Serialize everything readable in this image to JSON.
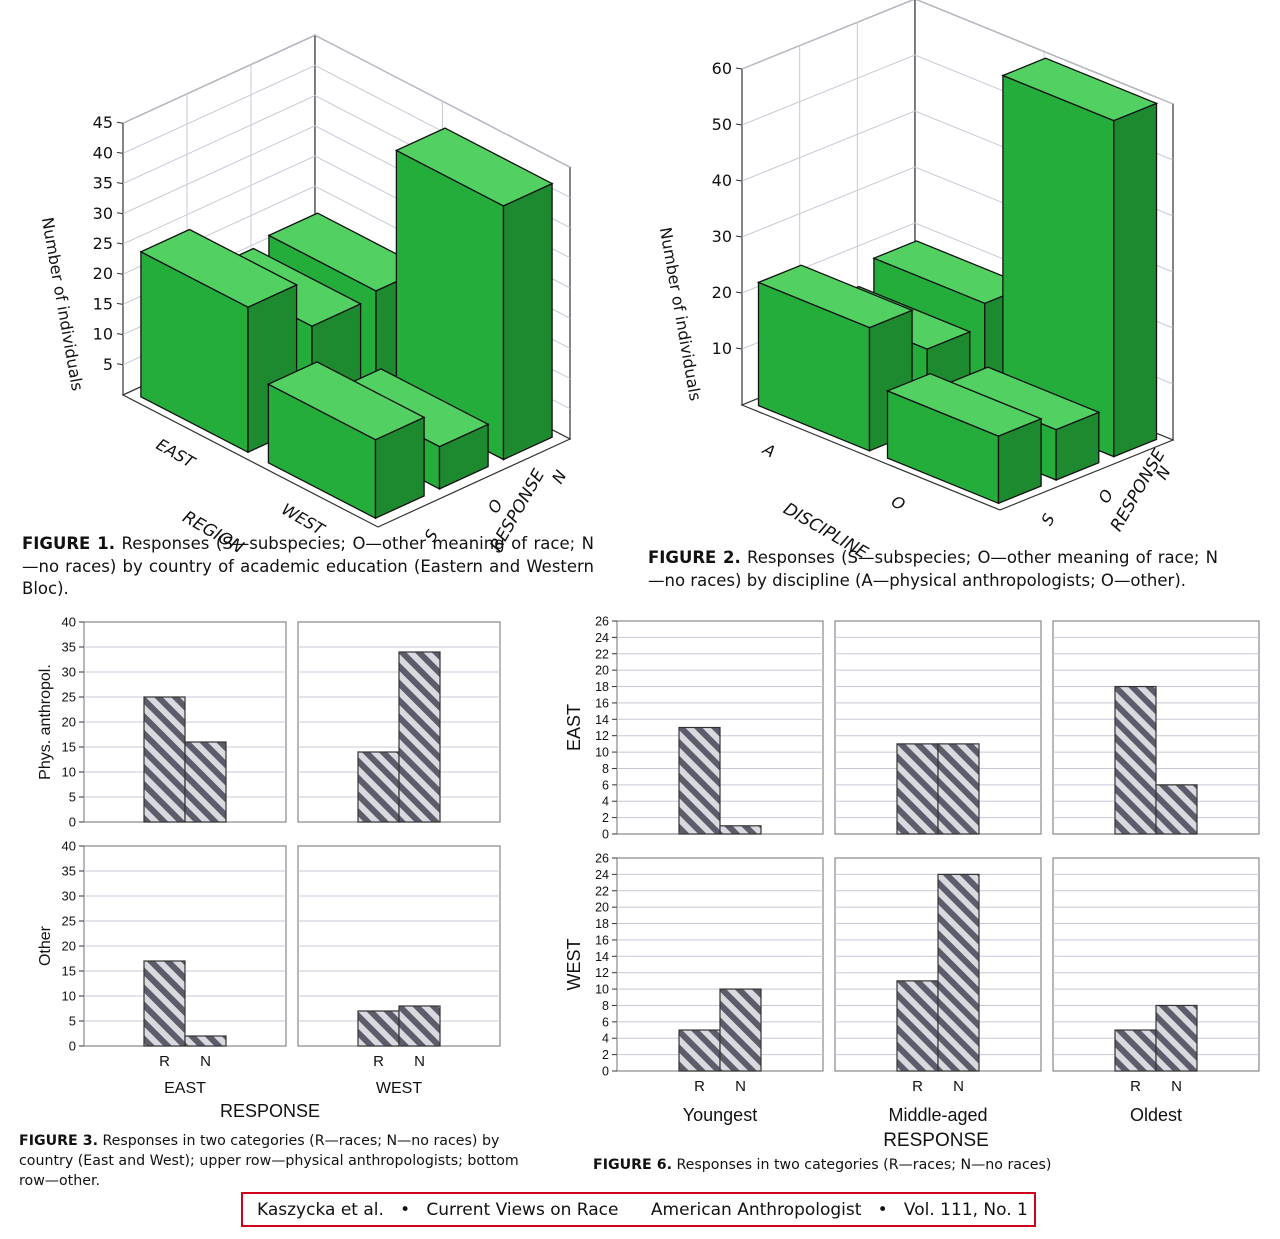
{
  "colors": {
    "bar3d_front": "#25ad3c",
    "bar3d_side": "#1e8a30",
    "bar3d_top": "#52d162",
    "hatch_dark": "#5c5c6a",
    "hatch_light": "#d9d9e0",
    "grid": "#c8c8d8",
    "footer_border": "#d0021b"
  },
  "captions": {
    "fig1_label": "FIGURE 1.",
    "fig1_text": " Responses (S—subspecies; O—other meaning of race; N—no races) by country of academic education (Eastern and Western Bloc).",
    "fig2_label": "FIGURE 2.",
    "fig2_text": " Responses (S—subspecies; O—other meaning of race; N—no races) by discipline (A—physical anthropologists; O—other).",
    "fig3_label": "FIGURE 3.",
    "fig3_text": " Responses in two categories (R—races; N—no races) by country (East and West); upper row—physical anthropologists; bottom row—other.",
    "fig6_label": "FIGURE 6.",
    "fig6_text": " Responses in two categories (R—races; N—no races)"
  },
  "footer": {
    "authors": "Kaszycka et al.",
    "title": "Current Views on Race",
    "journal": "American Anthropologist",
    "volume": "Vol. 111, No. 1"
  },
  "chart_data": [
    {
      "id": "fig1",
      "type": "bar3d",
      "ylabel": "Number of individuals",
      "ylim": [
        0,
        45
      ],
      "yticks": [
        5,
        10,
        15,
        20,
        25,
        30,
        35,
        40,
        45
      ],
      "xaxis_label": "REGION",
      "x_categories": [
        "EAST",
        "WEST"
      ],
      "zaxis_label": "RESPONSE",
      "z_categories": [
        "S",
        "O",
        "N"
      ],
      "values": [
        {
          "x": "EAST",
          "z": "S",
          "value": 24
        },
        {
          "x": "EAST",
          "z": "O",
          "value": 16
        },
        {
          "x": "EAST",
          "z": "N",
          "value": 17
        },
        {
          "x": "WEST",
          "z": "S",
          "value": 13
        },
        {
          "x": "WEST",
          "z": "O",
          "value": 7
        },
        {
          "x": "WEST",
          "z": "N",
          "value": 42
        }
      ]
    },
    {
      "id": "fig2",
      "type": "bar3d",
      "ylabel": "Number of individuals",
      "ylim": [
        0,
        60
      ],
      "yticks": [
        10,
        20,
        30,
        40,
        50,
        60
      ],
      "xaxis_label": "DISCIPLINE",
      "x_categories": [
        "A",
        "O"
      ],
      "zaxis_label": "RESPONSE",
      "z_categories": [
        "S",
        "O",
        "N"
      ],
      "values": [
        {
          "x": "A",
          "z": "S",
          "value": 22
        },
        {
          "x": "A",
          "z": "O",
          "value": 14
        },
        {
          "x": "A",
          "z": "N",
          "value": 18
        },
        {
          "x": "O",
          "z": "S",
          "value": 12
        },
        {
          "x": "O",
          "z": "O",
          "value": 9
        },
        {
          "x": "O",
          "z": "N",
          "value": 60
        }
      ]
    },
    {
      "id": "fig3",
      "type": "bar",
      "xlabel": "RESPONSE",
      "ylim": [
        0,
        40
      ],
      "yticks": [
        0,
        5,
        10,
        15,
        20,
        25,
        30,
        35,
        40
      ],
      "row_labels": [
        "Phys. anthropol.",
        "Other"
      ],
      "col_labels": [
        "EAST",
        "WEST"
      ],
      "categories": [
        "R",
        "N"
      ],
      "panels": [
        [
          {
            "R": 25,
            "N": 16
          },
          {
            "R": 14,
            "N": 34
          }
        ],
        [
          {
            "R": 17,
            "N": 2
          },
          {
            "R": 7,
            "N": 8
          }
        ]
      ]
    },
    {
      "id": "fig6",
      "type": "bar",
      "xlabel": "RESPONSE",
      "ylim": [
        0,
        26
      ],
      "yticks": [
        0,
        2,
        4,
        6,
        8,
        10,
        12,
        14,
        16,
        18,
        20,
        22,
        24,
        26
      ],
      "row_labels": [
        "EAST",
        "WEST"
      ],
      "col_labels": [
        "Youngest",
        "Middle-aged",
        "Oldest"
      ],
      "categories": [
        "R",
        "N"
      ],
      "panels": [
        [
          {
            "R": 13,
            "N": 1
          },
          {
            "R": 11,
            "N": 11
          },
          {
            "R": 18,
            "N": 6
          }
        ],
        [
          {
            "R": 5,
            "N": 10
          },
          {
            "R": 11,
            "N": 24
          },
          {
            "R": 5,
            "N": 8
          }
        ]
      ]
    }
  ]
}
